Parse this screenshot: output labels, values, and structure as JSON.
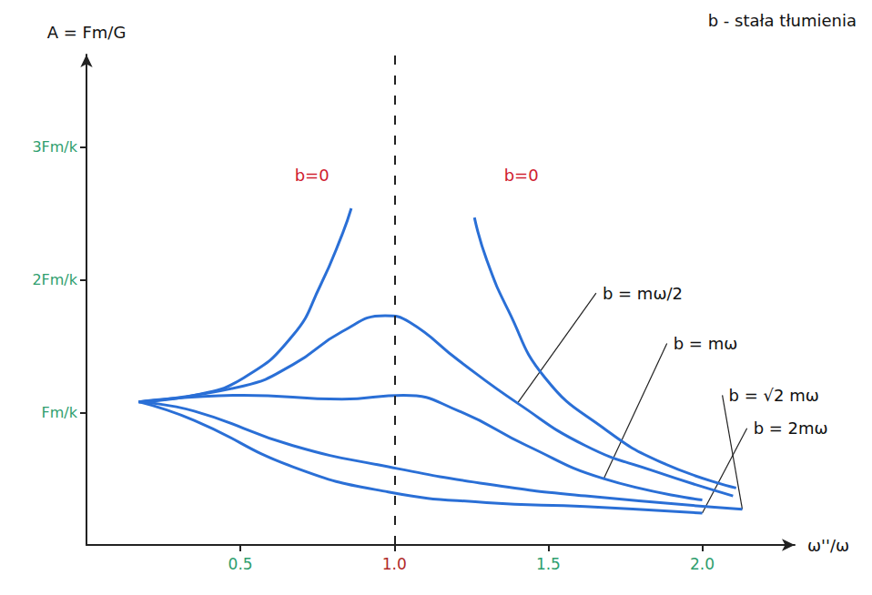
{
  "chart_data": {
    "type": "line",
    "title": "b - stała tłumienia",
    "xlabel": "ω''/ω",
    "ylabel": "A = Fm/G",
    "xlim": [
      0,
      2.3
    ],
    "ylim": [
      0,
      3.7
    ],
    "xticks": [
      0.5,
      {
        "value": 1,
        "label": "1.0"
      },
      1.5,
      {
        "value": 2,
        "label": "2.0"
      }
    ],
    "yticks": [
      {
        "value": 1,
        "label": "Fm/k"
      },
      {
        "value": 2,
        "label": "2Fm/k"
      },
      {
        "value": 3,
        "label": "3Fm/k"
      }
    ],
    "grid": false,
    "reference_x": 1,
    "series": [
      {
        "name": "b=0",
        "color": "#2a6fd6",
        "x": [
          0.17,
          0.35,
          0.51,
          0.67,
          0.76,
          0.83,
          0.86
        ],
        "values": [
          1.08,
          1.13,
          1.26,
          1.58,
          1.96,
          2.34,
          2.54
        ]
      },
      {
        "name": "b=0",
        "color": "#2a6fd6",
        "x": [
          1.26,
          1.3,
          1.37,
          1.49,
          1.68,
          1.87,
          2.11
        ],
        "values": [
          2.47,
          2.15,
          1.77,
          1.26,
          0.88,
          0.62,
          0.43
        ]
      },
      {
        "name": "b = mω/2",
        "color": "#2a6fd6",
        "x": [
          0.17,
          0.51,
          0.67,
          0.83,
          0.97,
          1.05,
          1.21,
          1.4,
          1.62,
          1.84,
          2.1
        ],
        "values": [
          1.08,
          1.2,
          1.36,
          1.61,
          1.73,
          1.68,
          1.39,
          1.07,
          0.75,
          0.56,
          0.37
        ]
      },
      {
        "name": "b = mω",
        "color": "#2a6fd6",
        "x": [
          0.17,
          0.51,
          0.83,
          1.03,
          1.21,
          1.43,
          1.68,
          2.0
        ],
        "values": [
          1.08,
          1.13,
          1.1,
          1.13,
          1.01,
          0.75,
          0.5,
          0.34
        ]
      },
      {
        "name": "b = √2 mω",
        "color": "#2a6fd6",
        "x": [
          0.17,
          0.35,
          0.67,
          0.98,
          1.3,
          1.62,
          2.13
        ],
        "values": [
          1.08,
          1.01,
          0.75,
          0.59,
          0.46,
          0.37,
          0.27
        ]
      },
      {
        "name": "b = 2mω",
        "color": "#2a6fd6",
        "x": [
          0.17,
          0.35,
          0.67,
          0.98,
          1.3,
          1.62,
          2.0
        ],
        "values": [
          1.08,
          0.94,
          0.59,
          0.4,
          0.32,
          0.29,
          0.24
        ]
      }
    ],
    "annotations": [
      {
        "text": "b=0",
        "x": 0.67,
        "y": 2.79,
        "color": "#d0202f"
      },
      {
        "text": "b=0",
        "x": 1.35,
        "y": 2.79,
        "color": "#d0202f"
      },
      {
        "text": "b = mω/2",
        "x": 1.67,
        "y": 1.9,
        "color": "#111111"
      },
      {
        "text": "b = mω",
        "x": 1.9,
        "y": 1.52,
        "color": "#111111"
      },
      {
        "text": "b = √2 mω",
        "x": 2.08,
        "y": 1.13,
        "color": "#111111"
      },
      {
        "text": "b = 2mω",
        "x": 2.16,
        "y": 0.88,
        "color": "#111111"
      }
    ]
  }
}
